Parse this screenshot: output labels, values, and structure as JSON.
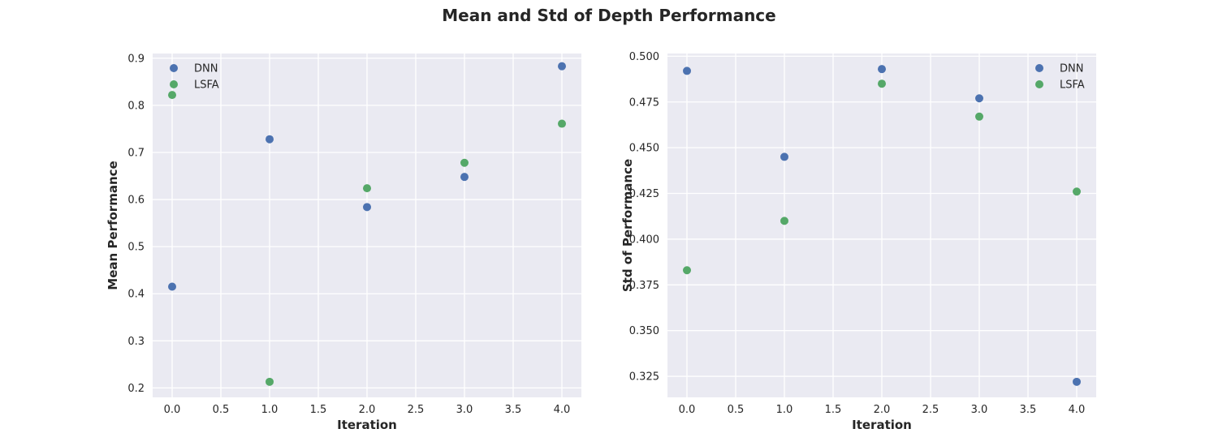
{
  "figure": {
    "title": "Mean and Std of Depth Performance"
  },
  "chart_data": [
    {
      "type": "scatter",
      "xlabel": "Iteration",
      "ylabel": "Mean Performance",
      "xlim": [
        -0.2,
        4.2
      ],
      "ylim": [
        0.18,
        0.91
      ],
      "xticks": [
        "0.0",
        "0.5",
        "1.0",
        "1.5",
        "2.0",
        "2.5",
        "3.0",
        "3.5",
        "4.0"
      ],
      "yticks": [
        "0.2",
        "0.3",
        "0.4",
        "0.5",
        "0.6",
        "0.7",
        "0.8",
        "0.9"
      ],
      "grid": true,
      "legend": "upper left",
      "series": [
        {
          "name": "DNN",
          "color": "#4c72b0",
          "x": [
            0,
            1,
            2,
            3,
            4
          ],
          "y": [
            0.415,
            0.728,
            0.584,
            0.648,
            0.883
          ]
        },
        {
          "name": "LSFA",
          "color": "#55a868",
          "x": [
            0,
            1,
            2,
            3,
            4
          ],
          "y": [
            0.822,
            0.213,
            0.624,
            0.678,
            0.761
          ]
        }
      ]
    },
    {
      "type": "scatter",
      "xlabel": "Iteration",
      "ylabel": "Std of Performance",
      "xlim": [
        -0.2,
        4.2
      ],
      "ylim": [
        0.3135,
        0.5015
      ],
      "xticks": [
        "0.0",
        "0.5",
        "1.0",
        "1.5",
        "2.0",
        "2.5",
        "3.0",
        "3.5",
        "4.0"
      ],
      "yticks": [
        "0.325",
        "0.350",
        "0.375",
        "0.400",
        "0.425",
        "0.450",
        "0.475",
        "0.500"
      ],
      "grid": true,
      "legend": "upper right",
      "series": [
        {
          "name": "DNN",
          "color": "#4c72b0",
          "x": [
            0,
            1,
            2,
            3,
            4
          ],
          "y": [
            0.492,
            0.445,
            0.493,
            0.477,
            0.322
          ]
        },
        {
          "name": "LSFA",
          "color": "#55a868",
          "x": [
            0,
            1,
            2,
            3,
            4
          ],
          "y": [
            0.383,
            0.41,
            0.485,
            0.467,
            0.426
          ]
        }
      ]
    }
  ]
}
